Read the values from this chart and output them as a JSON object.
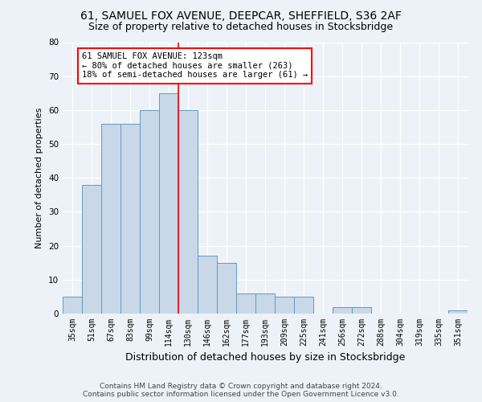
{
  "title_line1": "61, SAMUEL FOX AVENUE, DEEPCAR, SHEFFIELD, S36 2AF",
  "title_line2": "Size of property relative to detached houses in Stocksbridge",
  "xlabel": "Distribution of detached houses by size in Stocksbridge",
  "ylabel": "Number of detached properties",
  "footer_line1": "Contains HM Land Registry data © Crown copyright and database right 2024.",
  "footer_line2": "Contains public sector information licensed under the Open Government Licence v3.0.",
  "categories": [
    "35sqm",
    "51sqm",
    "67sqm",
    "83sqm",
    "99sqm",
    "114sqm",
    "130sqm",
    "146sqm",
    "162sqm",
    "177sqm",
    "193sqm",
    "209sqm",
    "225sqm",
    "241sqm",
    "256sqm",
    "272sqm",
    "288sqm",
    "304sqm",
    "319sqm",
    "335sqm",
    "351sqm"
  ],
  "values": [
    5,
    38,
    56,
    56,
    60,
    65,
    60,
    17,
    15,
    6,
    6,
    5,
    5,
    0,
    2,
    2,
    0,
    0,
    0,
    0,
    1
  ],
  "bar_color": "#c8d8e8",
  "bar_edge_color": "#6699bb",
  "vline_x_idx": 6,
  "vline_color": "red",
  "annotation_line1": "61 SAMUEL FOX AVENUE: 123sqm",
  "annotation_line2": "← 80% of detached houses are smaller (263)",
  "annotation_line3": "18% of semi-detached houses are larger (61) →",
  "ylim": [
    0,
    80
  ],
  "yticks": [
    0,
    10,
    20,
    30,
    40,
    50,
    60,
    70,
    80
  ],
  "bg_color": "#edf2f8",
  "plot_bg_color": "#edf2f8",
  "grid_color": "#ffffff",
  "title1_fontsize": 10,
  "title2_fontsize": 9,
  "ylabel_fontsize": 8,
  "xlabel_fontsize": 9,
  "tick_fontsize": 7,
  "annot_fontsize": 7.5,
  "footer_fontsize": 6.5
}
